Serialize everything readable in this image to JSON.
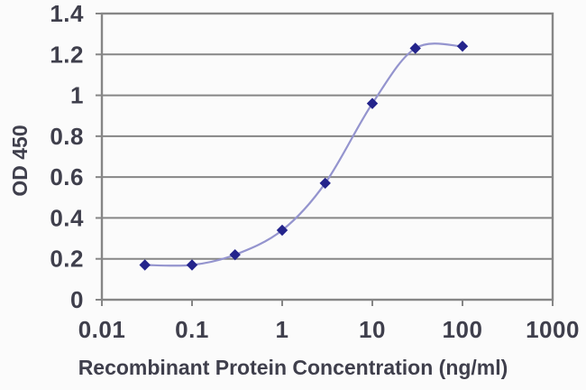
{
  "figure": {
    "background": "#fbfbfb"
  },
  "chart_data": {
    "type": "line",
    "subtype": "scatter-smooth-line-with-markers",
    "title": "",
    "xlabel": "Recombinant Protein Concentration (ng/ml)",
    "ylabel": "OD 450",
    "x_scale": "log",
    "xlim": [
      0.01,
      1000
    ],
    "ylim": [
      0,
      1.4
    ],
    "x": [
      0.03,
      0.1,
      0.3,
      1,
      3,
      10,
      30,
      100
    ],
    "y": [
      0.17,
      0.17,
      0.22,
      0.34,
      0.57,
      0.96,
      1.23,
      1.24
    ],
    "x_ticks": [
      {
        "value": 0.01,
        "label": "0.01"
      },
      {
        "value": 0.1,
        "label": "0.1"
      },
      {
        "value": 1,
        "label": "1"
      },
      {
        "value": 10,
        "label": "10"
      },
      {
        "value": 100,
        "label": "100"
      },
      {
        "value": 1000,
        "label": "1000"
      }
    ],
    "y_ticks": [
      {
        "value": 0,
        "label": "0"
      },
      {
        "value": 0.2,
        "label": "0.2"
      },
      {
        "value": 0.4,
        "label": "0.4"
      },
      {
        "value": 0.6,
        "label": "0.6"
      },
      {
        "value": 0.8,
        "label": "0.8"
      },
      {
        "value": 1,
        "label": "1"
      },
      {
        "value": 1.2,
        "label": "1.2"
      },
      {
        "value": 1.4,
        "label": "1.4"
      }
    ],
    "grid": "horizontal",
    "legend": "none",
    "marker_shape": "diamond",
    "colors": {
      "line": "#9494ce",
      "marker": "#24248c",
      "grid": "#868686",
      "frame": "#868686",
      "axis_text": "#3f3f4c"
    }
  }
}
